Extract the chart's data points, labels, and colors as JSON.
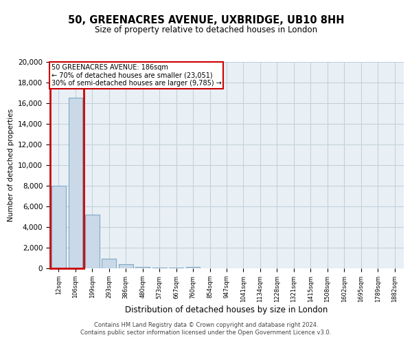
{
  "title": "50, GREENACRES AVENUE, UXBRIDGE, UB10 8HH",
  "subtitle": "Size of property relative to detached houses in London",
  "xlabel": "Distribution of detached houses by size in London",
  "ylabel": "Number of detached properties",
  "categories": [
    "12sqm",
    "106sqm",
    "199sqm",
    "293sqm",
    "386sqm",
    "480sqm",
    "573sqm",
    "667sqm",
    "760sqm",
    "854sqm",
    "947sqm",
    "1041sqm",
    "1134sqm",
    "1228sqm",
    "1321sqm",
    "1415sqm",
    "1508sqm",
    "1602sqm",
    "1695sqm",
    "1789sqm",
    "1882sqm"
  ],
  "values": [
    8000,
    16500,
    5200,
    950,
    380,
    160,
    100,
    70,
    140,
    0,
    0,
    0,
    0,
    0,
    0,
    0,
    0,
    0,
    0,
    0,
    0
  ],
  "bar_color": "#c9d9e8",
  "bar_edgecolor": "#7fa8c4",
  "annotation_line1": "50 GREENACRES AVENUE: 186sqm",
  "annotation_line2": "← 70% of detached houses are smaller (23,051)",
  "annotation_line3": "30% of semi-detached houses are larger (9,785) →",
  "ylim": [
    0,
    20000
  ],
  "yticks": [
    0,
    2000,
    4000,
    6000,
    8000,
    10000,
    12000,
    14000,
    16000,
    18000,
    20000
  ],
  "footnote1": "Contains HM Land Registry data © Crown copyright and database right 2024.",
  "footnote2": "Contains public sector information licensed under the Open Government Licence v3.0.",
  "bg_color": "#ffffff",
  "plot_bg_color": "#e8eff5",
  "grid_color": "#c0cfd8",
  "red_color": "#cc0000"
}
